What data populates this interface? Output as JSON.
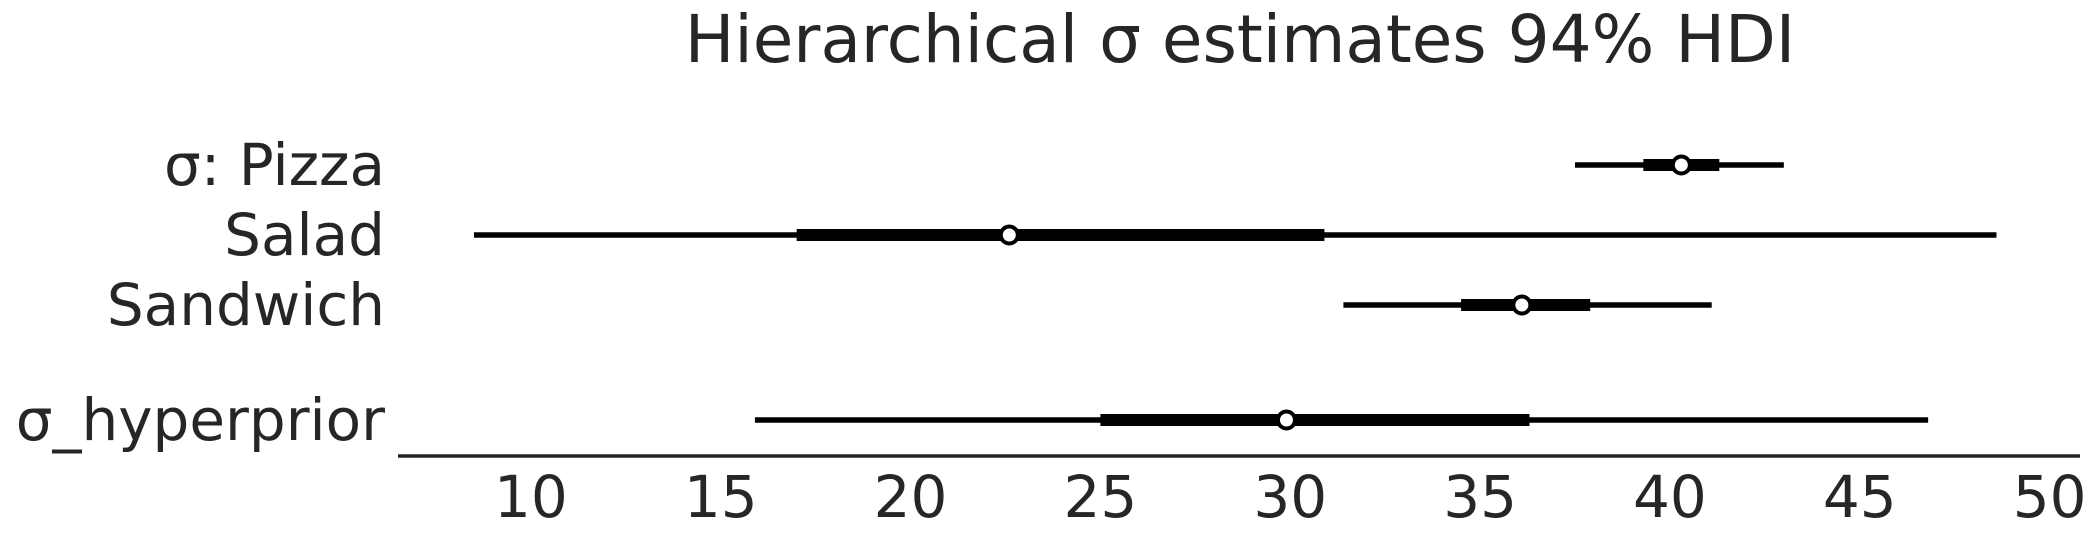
{
  "chart_data": {
    "type": "forest",
    "title": "Hierarchical σ estimates 94% HDI",
    "xlabel": "",
    "ylabel": "",
    "xlim": [
      6.5,
      50.8
    ],
    "xticks": [
      10,
      15,
      20,
      25,
      30,
      35,
      40,
      45,
      50
    ],
    "grid": false,
    "rows": [
      {
        "label": "σ: Pizza",
        "median": 40.3,
        "hdi_94": [
          37.5,
          43.0
        ],
        "iqr": [
          39.3,
          41.3
        ]
      },
      {
        "label": "Salad",
        "median": 22.6,
        "hdi_94": [
          8.5,
          48.6
        ],
        "iqr": [
          17.0,
          30.9
        ]
      },
      {
        "label": "Sandwich",
        "median": 36.1,
        "hdi_94": [
          31.4,
          41.1
        ],
        "iqr": [
          34.5,
          37.9
        ]
      },
      {
        "label": "σ_hyperprior",
        "median": 29.9,
        "hdi_94": [
          15.9,
          46.8
        ],
        "iqr": [
          25.0,
          36.3
        ]
      }
    ]
  }
}
